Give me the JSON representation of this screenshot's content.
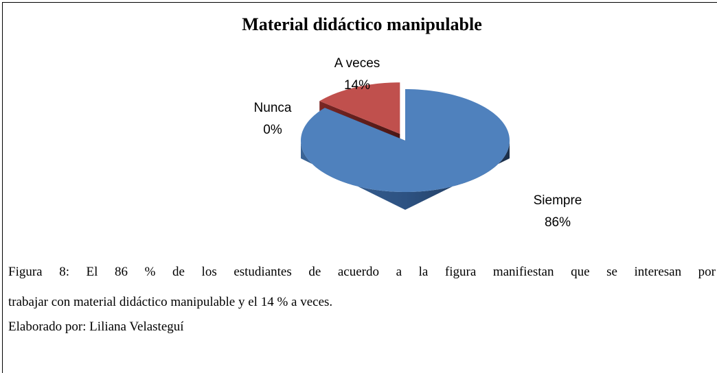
{
  "chart_data": {
    "type": "pie3d",
    "title": "Material didáctico manipulable",
    "categories": [
      "Siempre",
      "A veces",
      "Nunca"
    ],
    "values": [
      86,
      14,
      0
    ],
    "value_labels": [
      "86%",
      "14%",
      "0%"
    ],
    "colors": [
      "#4f81bd",
      "#c0504d",
      "#9bbb59"
    ],
    "exploded": [
      false,
      true,
      false
    ]
  },
  "caption_lines": [
    "Figura 8: El 86 % de los estudiantes de acuerdo a la figura manifiestan que se interesan por",
    "trabajar con material didáctico manipulable y el 14 % a veces."
  ],
  "credit": "Elaborado por: Liliana Velasteguí"
}
